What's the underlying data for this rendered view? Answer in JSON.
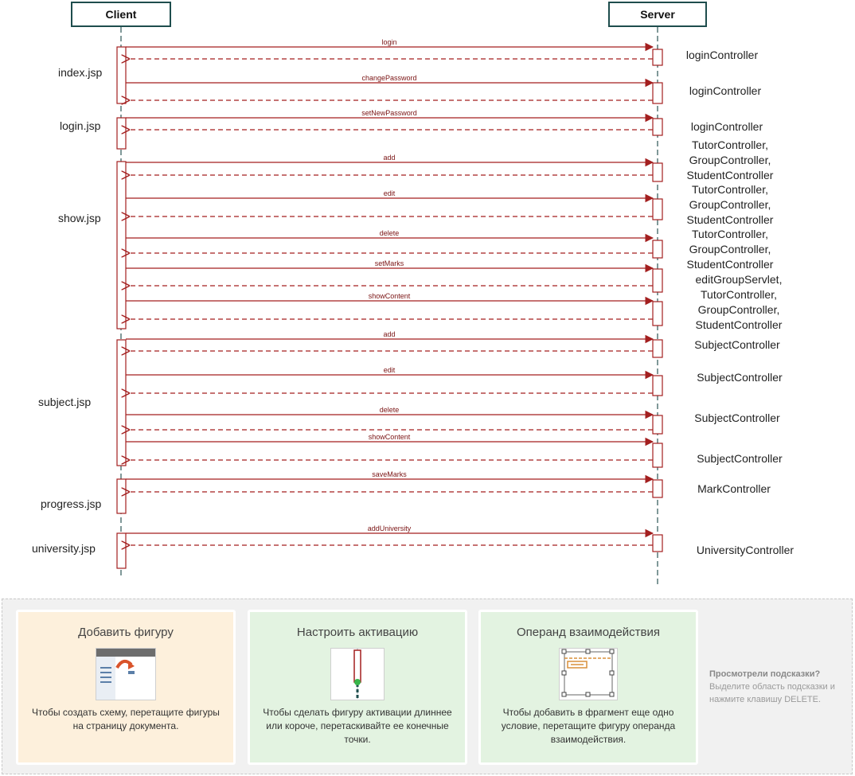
{
  "lifelines": {
    "client": "Client",
    "server": "Server"
  },
  "pages": [
    {
      "label": "index.jsp"
    },
    {
      "label": "login.jsp"
    },
    {
      "label": "show.jsp"
    },
    {
      "label": "subject.jsp"
    },
    {
      "label": "progress.jsp"
    },
    {
      "label": "university.jsp"
    }
  ],
  "messages": [
    {
      "label": "login"
    },
    {
      "label": "changePassword"
    },
    {
      "label": "setNewPassword"
    },
    {
      "label": "add"
    },
    {
      "label": "edit"
    },
    {
      "label": "delete"
    },
    {
      "label": "setMarks"
    },
    {
      "label": "showContent"
    },
    {
      "label": "add"
    },
    {
      "label": "edit"
    },
    {
      "label": "delete"
    },
    {
      "label": "showContent"
    },
    {
      "label": "saveMarks"
    },
    {
      "label": "addUniversity"
    }
  ],
  "controllers": [
    {
      "lines": [
        "loginController"
      ]
    },
    {
      "lines": [
        "loginController"
      ]
    },
    {
      "lines": [
        "loginController"
      ]
    },
    {
      "lines": [
        "TutorController,",
        "GroupController,",
        "StudentController"
      ]
    },
    {
      "lines": [
        "TutorController,",
        "GroupController,",
        "StudentController"
      ]
    },
    {
      "lines": [
        "TutorController,",
        "GroupController,",
        "StudentController"
      ]
    },
    {
      "lines": [
        "editGroupServlet,",
        "TutorController,",
        "GroupController,",
        "StudentController"
      ]
    },
    {
      "lines": [
        "SubjectController"
      ]
    },
    {
      "lines": [
        "SubjectController"
      ]
    },
    {
      "lines": [
        "SubjectController"
      ]
    },
    {
      "lines": [
        "SubjectController"
      ]
    },
    {
      "lines": [
        "MarkController"
      ]
    },
    {
      "lines": [
        "UniversityController"
      ]
    }
  ],
  "hints": {
    "cards": [
      {
        "title": "Добавить фигуру",
        "icon": "add-shape-icon",
        "text": "Чтобы создать схему, перетащите фигуры на страницу документа."
      },
      {
        "title": "Настроить активацию",
        "icon": "activation-icon",
        "text": "Чтобы сделать фигуру активации длиннее или короче, перетаскивайте ее конечные точки."
      },
      {
        "title": "Операнд взаимодействия",
        "icon": "operand-icon",
        "text": "Чтобы добавить в фрагмент еще одно условие, перетащите фигуру операнда взаимодействия."
      }
    ],
    "note_title": "Просмотрели подсказки?",
    "note_text": "Выделите область подсказки и нажмите клавишу DELETE."
  },
  "colors": {
    "message": "#a31f1f",
    "lifeline_border": "#1e4d4d",
    "card_orange": "#fdf0dc",
    "card_green": "#e3f3e1"
  }
}
